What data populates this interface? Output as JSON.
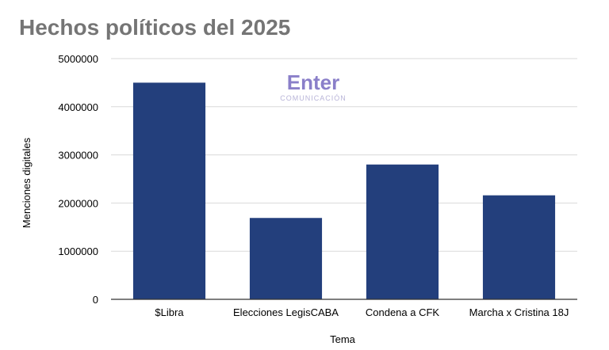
{
  "chart_data": {
    "type": "bar",
    "title": "Hechos políticos del 2025",
    "xlabel": "Tema",
    "ylabel": "Menciones digitales",
    "categories": [
      "$Libra",
      "Elecciones LegisCABA",
      "Condena a CFK",
      "Marcha x Cristina 18J"
    ],
    "values": [
      4500000,
      1690000,
      2800000,
      2160000
    ],
    "ylim": [
      0,
      5000000
    ],
    "yticks": [
      0,
      1000000,
      2000000,
      3000000,
      4000000,
      5000000
    ],
    "grid": true,
    "legend": "none",
    "bar_color": "#233f7c",
    "gridline_color": "#d9d9d9"
  },
  "watermark": {
    "main": "Enter",
    "sub": "COMUNICACIÓN",
    "color_main": "#8a7fc9",
    "color_sub": "#b8b4d8"
  }
}
